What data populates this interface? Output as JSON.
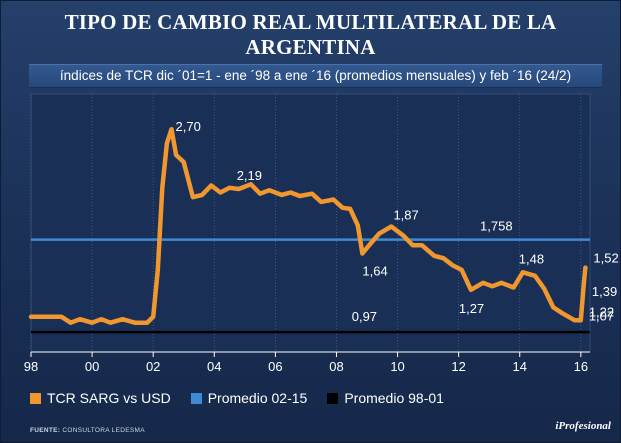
{
  "title": "TIPO DE CAMBIO REAL MULTILATERAL DE LA ARGENTINA",
  "subtitle": "índices de TCR dic ´01=1 - ene ´98 a ene ´16 (promedios mensuales) y feb ´16 (24/2)",
  "source_label": "FUENTE:",
  "source_text": "CONSULTORA LEDESMA",
  "brand": "iProfesional",
  "colors": {
    "series": "#f0972f",
    "avg_02_15": "#3e8ad6",
    "avg_98_01": "#000000",
    "plot_bg": "#1a2f55"
  },
  "legend": [
    {
      "label": "TCR SARG vs USD",
      "color": "#f0972f"
    },
    {
      "label": "Promedio 02-15",
      "color": "#3e8ad6"
    },
    {
      "label": "Promedio 98-01",
      "color": "#000000"
    }
  ],
  "chart_data": {
    "type": "line",
    "title": "TIPO DE CAMBIO REAL MULTILATERAL DE LA ARGENTINA",
    "subtitle": "índices de TCR dic ´01=1 - ene ´98 a ene ´16 (promedios mensuales) y feb ´16 (24/2)",
    "xlabel": "",
    "ylabel": "",
    "x_ticks": [
      "98",
      "00",
      "02",
      "04",
      "06",
      "08",
      "10",
      "12",
      "14",
      "16"
    ],
    "x_tick_values": [
      1998,
      2000,
      2002,
      2004,
      2006,
      2008,
      2010,
      2012,
      2014,
      2016
    ],
    "xlim": [
      1998,
      2016.3
    ],
    "ylim": [
      0.8,
      3.0
    ],
    "grid": "vertical",
    "legend_position": "bottom-left",
    "series": [
      {
        "name": "TCR SARG vs USD",
        "x": [
          1998,
          1998.5,
          1999,
          1999.3,
          1999.6,
          2000,
          2000.3,
          2000.6,
          2001,
          2001.4,
          2001.8,
          2002,
          2002.15,
          2002.3,
          2002.45,
          2002.6,
          2002.75,
          2003,
          2003.3,
          2003.6,
          2003.9,
          2004.2,
          2004.5,
          2004.8,
          2005.2,
          2005.5,
          2005.8,
          2006.2,
          2006.5,
          2006.8,
          2007.2,
          2007.5,
          2007.9,
          2008.2,
          2008.45,
          2008.7,
          2008.85,
          2009.1,
          2009.4,
          2009.8,
          2010.2,
          2010.5,
          2010.8,
          2011.2,
          2011.5,
          2011.8,
          2012.1,
          2012.4,
          2012.8,
          2013.1,
          2013.4,
          2013.8,
          2014.1,
          2014.5,
          2014.8,
          2015.1,
          2015.4,
          2015.8,
          2016,
          2016.1,
          2016.15
        ],
        "values": [
          1.1,
          1.1,
          1.1,
          1.05,
          1.08,
          1.05,
          1.08,
          1.05,
          1.08,
          1.05,
          1.05,
          1.1,
          1.5,
          2.2,
          2.58,
          2.7,
          2.48,
          2.42,
          2.12,
          2.14,
          2.22,
          2.16,
          2.2,
          2.19,
          2.23,
          2.15,
          2.18,
          2.14,
          2.16,
          2.13,
          2.15,
          2.08,
          2.1,
          2.03,
          2.02,
          1.88,
          1.64,
          1.72,
          1.81,
          1.87,
          1.79,
          1.71,
          1.71,
          1.62,
          1.6,
          1.54,
          1.5,
          1.33,
          1.39,
          1.36,
          1.39,
          1.35,
          1.48,
          1.45,
          1.34,
          1.18,
          1.13,
          1.07,
          1.07,
          1.39,
          1.52
        ]
      },
      {
        "name": "Promedio 02-15",
        "value": 1.758
      },
      {
        "name": "Promedio 98-01",
        "value": 0.97
      }
    ],
    "annotations": [
      {
        "text": "2,70",
        "x": 2002.6,
        "y": 2.7
      },
      {
        "text": "2,19",
        "x": 2004.8,
        "y": 2.19
      },
      {
        "text": "1,87",
        "x": 2009.8,
        "y": 1.87
      },
      {
        "text": "1,758",
        "x": 2012.7,
        "y": 1.758
      },
      {
        "text": "1,64",
        "x": 2008.85,
        "y": 1.64
      },
      {
        "text": "1,48",
        "x": 2014.1,
        "y": 1.48
      },
      {
        "text": "1,27",
        "x": 2012.4,
        "y": 1.27
      },
      {
        "text": "0,97",
        "x": 2008.5,
        "y": 0.97
      },
      {
        "text": "1,52",
        "x": 2016.15,
        "y": 1.52
      },
      {
        "text": "1,39",
        "x": 2016.1,
        "y": 1.39
      },
      {
        "text": "1,22",
        "x": 2016,
        "y": 1.22
      },
      {
        "text": "1,07",
        "x": 2016,
        "y": 1.07
      }
    ]
  }
}
